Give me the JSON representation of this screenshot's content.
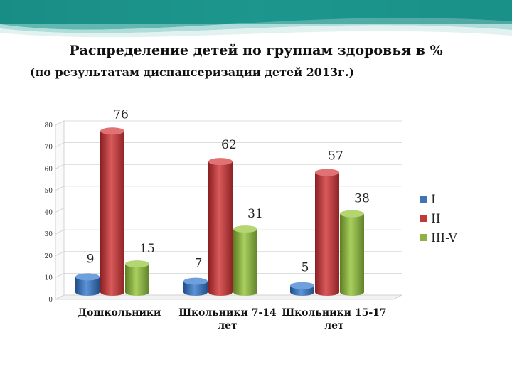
{
  "chart_data": {
    "type": "bar",
    "title": "Распределение детей по группам здоровья в %",
    "subtitle": "(по результатам диспансеризации детей 2013г.)",
    "categories": [
      [
        "Дошкольники"
      ],
      [
        "Школьники 7-14",
        "лет"
      ],
      [
        "Школьники 15-17",
        "лет"
      ]
    ],
    "series": [
      {
        "name": "I",
        "values": [
          9,
          7,
          5
        ],
        "color": "#3f74b5"
      },
      {
        "name": "II",
        "values": [
          76,
          62,
          57
        ],
        "color": "#c0393b"
      },
      {
        "name": "III-V",
        "values": [
          15,
          31,
          38
        ],
        "color": "#8fb343"
      }
    ],
    "yticks": [
      0,
      10,
      20,
      30,
      40,
      50,
      60,
      70,
      80
    ],
    "ylim": [
      0,
      80
    ],
    "grid": true,
    "legend_position": "right",
    "style": "3d-cylinder"
  }
}
